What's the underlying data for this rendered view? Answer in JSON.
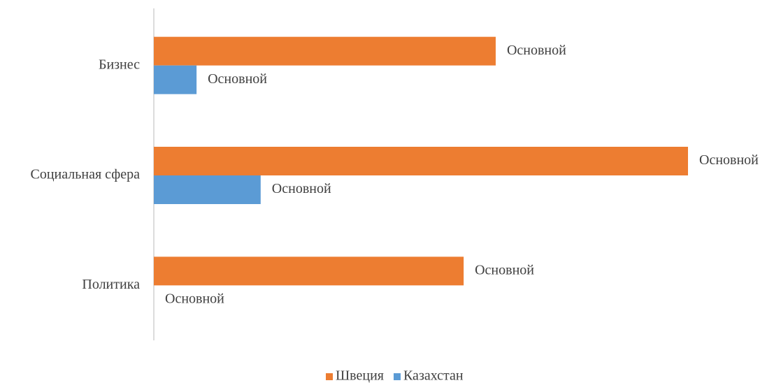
{
  "chart_data": {
    "type": "hbar",
    "categories": [
      "Бизнес",
      "Социальная сфера",
      "Политика"
    ],
    "series": [
      {
        "name": "Швеция",
        "color": "#ed7d31",
        "values": [
          64,
          100,
          58
        ],
        "value_labels": [
          "Основной",
          "Основной",
          "Основной"
        ]
      },
      {
        "name": "Казахстан",
        "color": "#5b9bd5",
        "values": [
          8,
          20,
          0
        ],
        "value_labels": [
          "Основной",
          "Основной",
          "Основной"
        ]
      }
    ],
    "legend": "bottom"
  }
}
